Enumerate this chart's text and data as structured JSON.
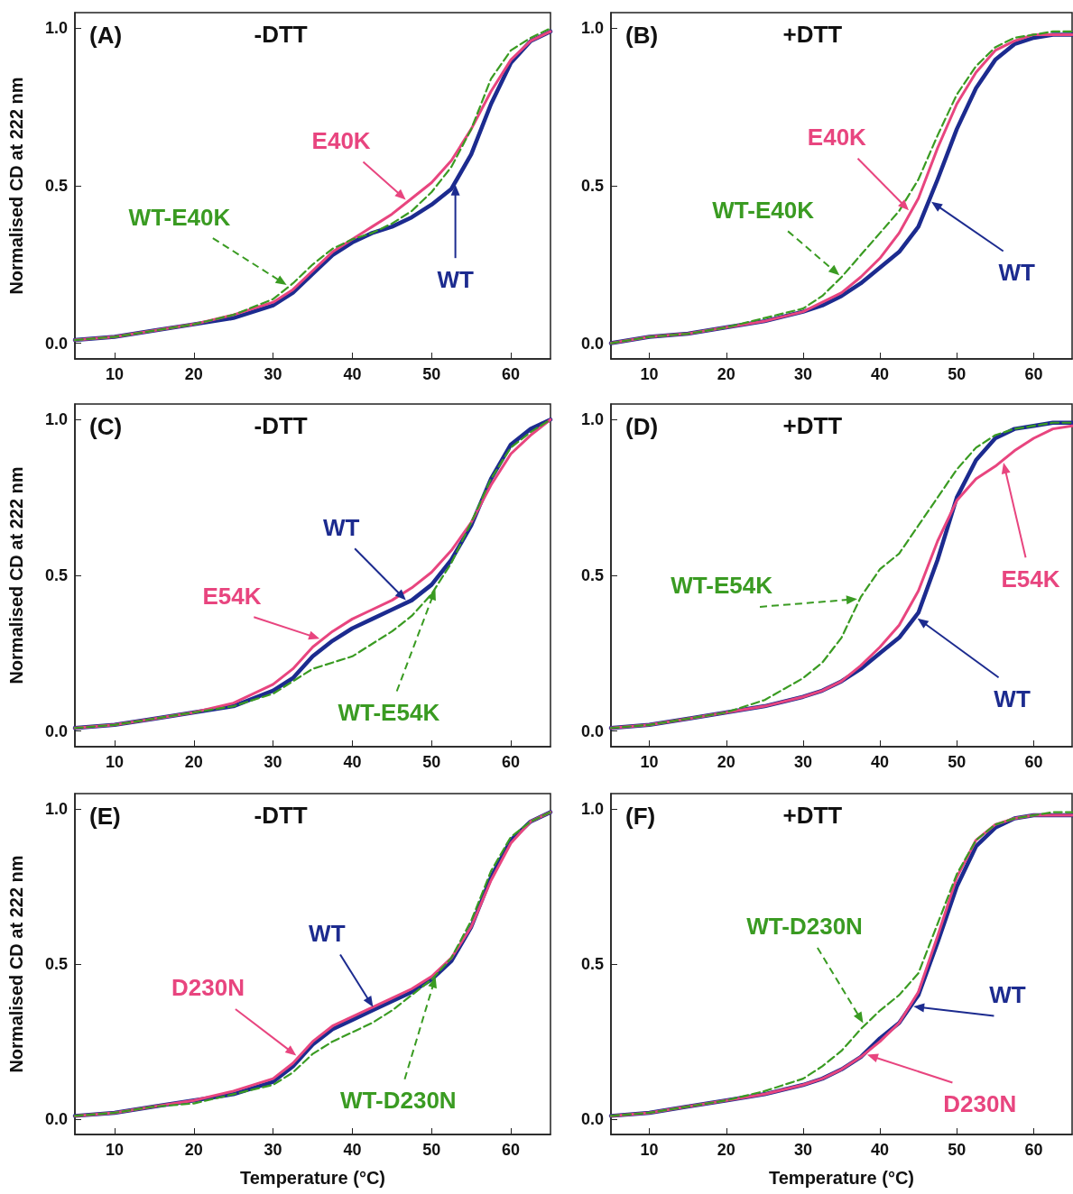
{
  "chart_data": [
    {
      "type": "line",
      "title": "-DTT",
      "annotations": [
        "(A)"
      ],
      "ylabel": "Normalised CD at 222 nm",
      "x": [
        5,
        10,
        15,
        20,
        25,
        30,
        32.5,
        35,
        37.5,
        40,
        42.5,
        45,
        47.5,
        50,
        52.5,
        55,
        57.5,
        60,
        62.5,
        65
      ],
      "xlim": [
        5,
        65
      ],
      "xticks": [
        10,
        20,
        30,
        40,
        50,
        60
      ],
      "ylim": [
        -0.05,
        1.05
      ],
      "yticks": [
        {
          "value": 0,
          "label": "0.0"
        },
        {
          "value": 0.5,
          "label": "0.5"
        },
        {
          "value": 1,
          "label": "1.0"
        }
      ],
      "legend": false,
      "grid": false,
      "marker": "none",
      "series": [
        {
          "name": "WT",
          "color": "#1c2b8f",
          "line_style": "solid",
          "values": [
            0.01,
            0.02,
            0.04,
            0.06,
            0.08,
            0.12,
            0.16,
            0.22,
            0.28,
            0.32,
            0.35,
            0.37,
            0.4,
            0.44,
            0.49,
            0.6,
            0.76,
            0.89,
            0.96,
            0.99
          ]
        },
        {
          "name": "E40K",
          "color": "#e8457f",
          "line_style": "solid",
          "values": [
            0.01,
            0.02,
            0.04,
            0.06,
            0.09,
            0.13,
            0.17,
            0.23,
            0.29,
            0.33,
            0.37,
            0.41,
            0.46,
            0.51,
            0.58,
            0.68,
            0.8,
            0.9,
            0.96,
            0.99
          ]
        },
        {
          "name": "WT-E40K",
          "color": "#3a9b22",
          "line_style": "dashed",
          "values": [
            0.01,
            0.02,
            0.04,
            0.06,
            0.09,
            0.14,
            0.19,
            0.25,
            0.3,
            0.33,
            0.35,
            0.38,
            0.42,
            0.48,
            0.56,
            0.68,
            0.84,
            0.93,
            0.97,
            1.0
          ]
        }
      ]
    },
    {
      "type": "line",
      "title": "+DTT",
      "annotations": [
        "(B)"
      ],
      "x": [
        5,
        10,
        15,
        20,
        25,
        30,
        32.5,
        35,
        37.5,
        40,
        42.5,
        45,
        47.5,
        50,
        52.5,
        55,
        57.5,
        60,
        62.5,
        65
      ],
      "xlim": [
        5,
        65
      ],
      "xticks": [
        10,
        20,
        30,
        40,
        50,
        60
      ],
      "ylim": [
        -0.05,
        1.05
      ],
      "yticks": [
        {
          "value": 0,
          "label": "0.0"
        },
        {
          "value": 0.5,
          "label": "0.5"
        },
        {
          "value": 1,
          "label": "1.0"
        }
      ],
      "legend": false,
      "grid": false,
      "marker": "none",
      "series": [
        {
          "name": "WT",
          "color": "#1c2b8f",
          "line_style": "solid",
          "values": [
            0.0,
            0.02,
            0.03,
            0.05,
            0.07,
            0.1,
            0.12,
            0.15,
            0.19,
            0.24,
            0.29,
            0.37,
            0.52,
            0.68,
            0.81,
            0.9,
            0.95,
            0.97,
            0.98,
            0.98
          ]
        },
        {
          "name": "E40K",
          "color": "#e8457f",
          "line_style": "solid",
          "values": [
            0.0,
            0.02,
            0.03,
            0.05,
            0.07,
            0.1,
            0.13,
            0.16,
            0.21,
            0.27,
            0.35,
            0.46,
            0.62,
            0.76,
            0.86,
            0.93,
            0.96,
            0.98,
            0.98,
            0.98
          ]
        },
        {
          "name": "WT-E40K",
          "color": "#3a9b22",
          "line_style": "dashed",
          "values": [
            0.0,
            0.02,
            0.03,
            0.05,
            0.08,
            0.11,
            0.15,
            0.21,
            0.28,
            0.35,
            0.42,
            0.52,
            0.66,
            0.79,
            0.88,
            0.94,
            0.97,
            0.98,
            0.99,
            0.99
          ]
        }
      ]
    },
    {
      "type": "line",
      "title": "-DTT",
      "annotations": [
        "(C)"
      ],
      "ylabel": "Normalised CD at 222 nm",
      "x": [
        5,
        10,
        15,
        20,
        25,
        30,
        32.5,
        35,
        37.5,
        40,
        42.5,
        45,
        47.5,
        50,
        52.5,
        55,
        57.5,
        60,
        62.5,
        65
      ],
      "xlim": [
        5,
        65
      ],
      "xticks": [
        10,
        20,
        30,
        40,
        50,
        60
      ],
      "ylim": [
        -0.05,
        1.05
      ],
      "yticks": [
        {
          "value": 0,
          "label": "0.0"
        },
        {
          "value": 0.5,
          "label": "0.5"
        },
        {
          "value": 1,
          "label": "1.0"
        }
      ],
      "legend": false,
      "grid": false,
      "marker": "none",
      "series": [
        {
          "name": "WT",
          "color": "#1c2b8f",
          "line_style": "solid",
          "values": [
            0.01,
            0.02,
            0.04,
            0.06,
            0.08,
            0.13,
            0.17,
            0.24,
            0.29,
            0.33,
            0.36,
            0.39,
            0.42,
            0.47,
            0.55,
            0.66,
            0.81,
            0.92,
            0.97,
            1.0
          ]
        },
        {
          "name": "E54K",
          "color": "#e8457f",
          "line_style": "solid",
          "values": [
            0.01,
            0.02,
            0.04,
            0.06,
            0.09,
            0.15,
            0.2,
            0.27,
            0.32,
            0.36,
            0.39,
            0.42,
            0.46,
            0.51,
            0.58,
            0.67,
            0.79,
            0.89,
            0.95,
            1.0
          ]
        },
        {
          "name": "WT-E54K",
          "color": "#3a9b22",
          "line_style": "dashed",
          "values": [
            0.01,
            0.02,
            0.04,
            0.06,
            0.08,
            0.12,
            0.16,
            0.2,
            0.22,
            0.24,
            0.28,
            0.32,
            0.37,
            0.44,
            0.54,
            0.67,
            0.81,
            0.91,
            0.96,
            1.0
          ]
        }
      ]
    },
    {
      "type": "line",
      "title": "+DTT",
      "annotations": [
        "(D)"
      ],
      "x": [
        5,
        10,
        15,
        20,
        25,
        30,
        32.5,
        35,
        37.5,
        40,
        42.5,
        45,
        47.5,
        50,
        52.5,
        55,
        57.5,
        60,
        62.5,
        65
      ],
      "xlim": [
        5,
        65
      ],
      "xticks": [
        10,
        20,
        30,
        40,
        50,
        60
      ],
      "ylim": [
        -0.05,
        1.05
      ],
      "yticks": [
        {
          "value": 0,
          "label": "0.0"
        },
        {
          "value": 0.5,
          "label": "0.5"
        },
        {
          "value": 1,
          "label": "1.0"
        }
      ],
      "legend": false,
      "grid": false,
      "marker": "none",
      "series": [
        {
          "name": "WT",
          "color": "#1c2b8f",
          "line_style": "solid",
          "values": [
            0.01,
            0.02,
            0.04,
            0.06,
            0.08,
            0.11,
            0.13,
            0.16,
            0.2,
            0.25,
            0.3,
            0.38,
            0.55,
            0.75,
            0.87,
            0.94,
            0.97,
            0.98,
            0.99,
            0.99
          ]
        },
        {
          "name": "E54K",
          "color": "#e8457f",
          "line_style": "solid",
          "values": [
            0.01,
            0.02,
            0.04,
            0.06,
            0.08,
            0.11,
            0.13,
            0.16,
            0.21,
            0.27,
            0.34,
            0.45,
            0.61,
            0.74,
            0.81,
            0.85,
            0.9,
            0.94,
            0.97,
            0.98
          ]
        },
        {
          "name": "WT-E54K",
          "color": "#3a9b22",
          "line_style": "dashed",
          "values": [
            0.01,
            0.02,
            0.04,
            0.06,
            0.1,
            0.17,
            0.22,
            0.3,
            0.43,
            0.52,
            0.57,
            0.66,
            0.75,
            0.84,
            0.91,
            0.95,
            0.97,
            0.98,
            0.99,
            0.99
          ]
        }
      ]
    },
    {
      "type": "line",
      "title": "-DTT",
      "annotations": [
        "(E)"
      ],
      "ylabel": "Normalised CD at 222 nm",
      "xlabel": "Temperature (°C)",
      "x": [
        5,
        10,
        15,
        20,
        25,
        30,
        32.5,
        35,
        37.5,
        40,
        42.5,
        45,
        47.5,
        50,
        52.5,
        55,
        57.5,
        60,
        62.5,
        65
      ],
      "xlim": [
        5,
        65
      ],
      "xticks": [
        10,
        20,
        30,
        40,
        50,
        60
      ],
      "ylim": [
        -0.05,
        1.05
      ],
      "yticks": [
        {
          "value": 0,
          "label": "0.0"
        },
        {
          "value": 0.5,
          "label": "0.5"
        },
        {
          "value": 1,
          "label": "1.0"
        }
      ],
      "legend": false,
      "grid": false,
      "marker": "none",
      "series": [
        {
          "name": "WT",
          "color": "#1c2b8f",
          "line_style": "solid",
          "values": [
            0.01,
            0.02,
            0.04,
            0.06,
            0.08,
            0.12,
            0.17,
            0.24,
            0.29,
            0.32,
            0.35,
            0.38,
            0.41,
            0.45,
            0.51,
            0.62,
            0.78,
            0.9,
            0.96,
            0.99
          ]
        },
        {
          "name": "D230N",
          "color": "#e8457f",
          "line_style": "solid",
          "values": [
            0.01,
            0.02,
            0.04,
            0.06,
            0.09,
            0.13,
            0.18,
            0.25,
            0.3,
            0.33,
            0.36,
            0.39,
            0.42,
            0.46,
            0.52,
            0.62,
            0.77,
            0.89,
            0.96,
            0.99
          ]
        },
        {
          "name": "WT-D230N",
          "color": "#3a9b22",
          "line_style": "dashed",
          "values": [
            0.01,
            0.02,
            0.04,
            0.05,
            0.08,
            0.11,
            0.15,
            0.21,
            0.25,
            0.28,
            0.31,
            0.35,
            0.4,
            0.45,
            0.52,
            0.64,
            0.8,
            0.91,
            0.96,
            0.99
          ]
        }
      ]
    },
    {
      "type": "line",
      "title": "+DTT",
      "annotations": [
        "(F)"
      ],
      "xlabel": "Temperature (°C)",
      "x": [
        5,
        10,
        15,
        20,
        25,
        30,
        32.5,
        35,
        37.5,
        40,
        42.5,
        45,
        47.5,
        50,
        52.5,
        55,
        57.5,
        60,
        62.5,
        65
      ],
      "xlim": [
        5,
        65
      ],
      "xticks": [
        10,
        20,
        30,
        40,
        50,
        60
      ],
      "ylim": [
        -0.05,
        1.05
      ],
      "yticks": [
        {
          "value": 0,
          "label": "0.0"
        },
        {
          "value": 0.5,
          "label": "0.5"
        },
        {
          "value": 1,
          "label": "1.0"
        }
      ],
      "legend": false,
      "grid": false,
      "marker": "none",
      "series": [
        {
          "name": "WT",
          "color": "#1c2b8f",
          "line_style": "solid",
          "values": [
            0.01,
            0.02,
            0.04,
            0.06,
            0.08,
            0.11,
            0.13,
            0.16,
            0.2,
            0.26,
            0.31,
            0.4,
            0.57,
            0.75,
            0.88,
            0.94,
            0.97,
            0.98,
            0.98,
            0.98
          ]
        },
        {
          "name": "D230N",
          "color": "#e8457f",
          "line_style": "solid",
          "values": [
            0.01,
            0.02,
            0.04,
            0.06,
            0.08,
            0.11,
            0.13,
            0.16,
            0.2,
            0.25,
            0.31,
            0.41,
            0.59,
            0.78,
            0.9,
            0.95,
            0.97,
            0.98,
            0.98,
            0.98
          ]
        },
        {
          "name": "WT-D230N",
          "color": "#3a9b22",
          "line_style": "dashed",
          "values": [
            0.01,
            0.02,
            0.04,
            0.06,
            0.09,
            0.13,
            0.17,
            0.22,
            0.29,
            0.35,
            0.4,
            0.47,
            0.63,
            0.79,
            0.9,
            0.95,
            0.97,
            0.98,
            0.99,
            0.99
          ]
        }
      ]
    }
  ]
}
